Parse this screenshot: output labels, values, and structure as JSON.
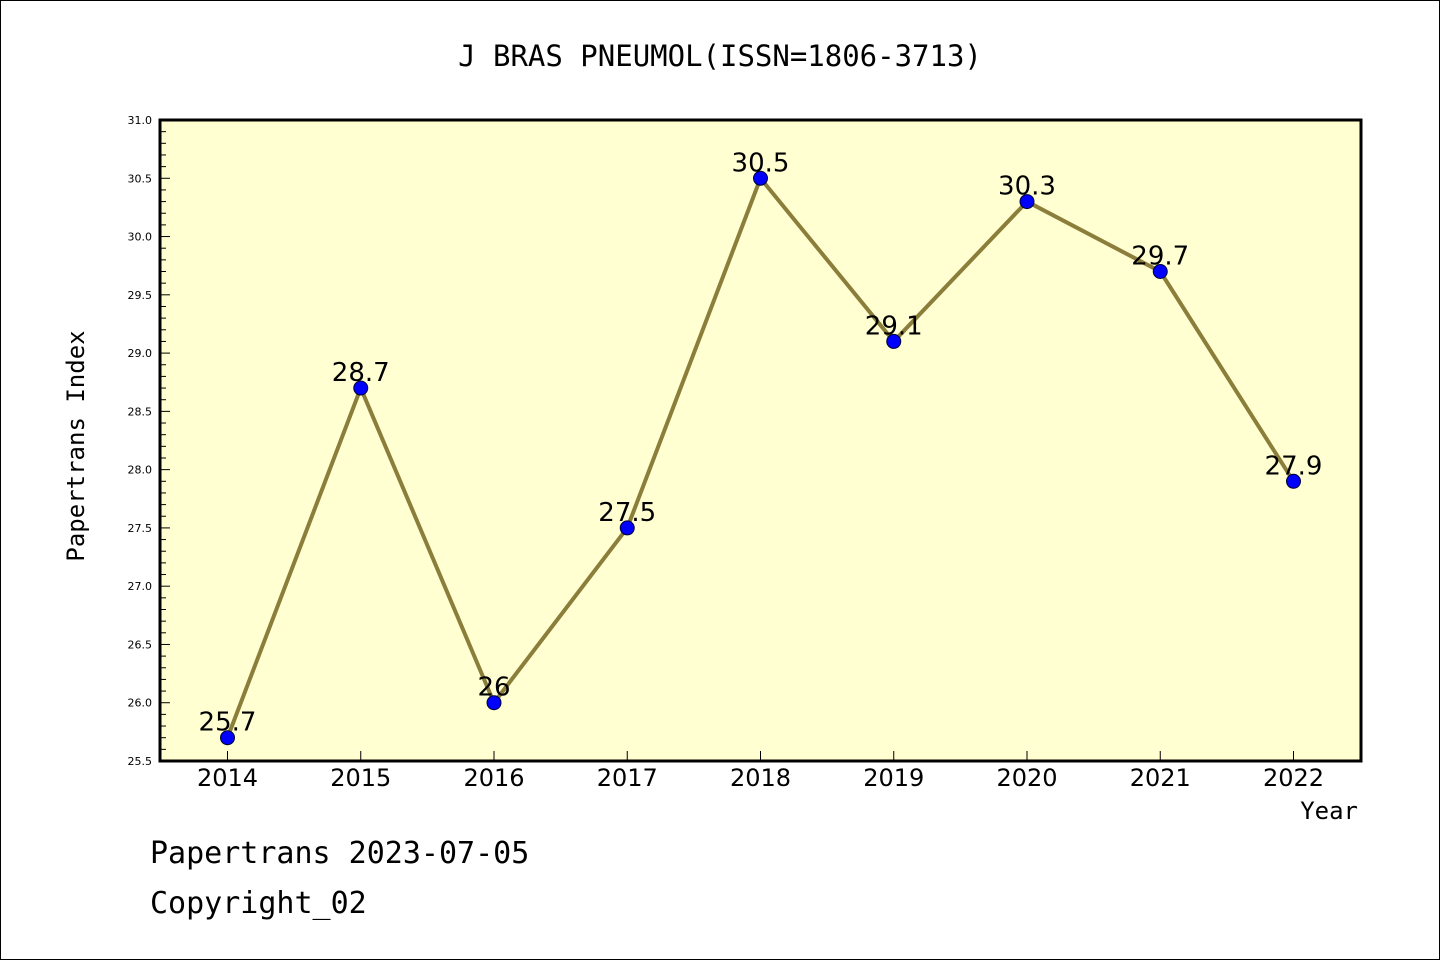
{
  "chart_data": {
    "type": "line",
    "title": "J BRAS PNEUMOL(ISSN=1806-3713)",
    "xlabel": "Year",
    "ylabel": "Papertrans Index",
    "categories": [
      "2014",
      "2015",
      "2016",
      "2017",
      "2018",
      "2019",
      "2020",
      "2021",
      "2022"
    ],
    "series": [
      {
        "values": [
          25.7,
          28.7,
          26,
          27.5,
          30.5,
          29.1,
          30.3,
          29.7,
          27.9
        ],
        "data_labels": [
          "25.7",
          "28.7",
          "26",
          "27.5",
          "30.5",
          "29.1",
          "30.3",
          "29.7",
          "27.9"
        ]
      }
    ],
    "ylim": [
      25.5,
      31.0
    ],
    "yticks": [
      "25.5",
      "26.0",
      "26.5",
      "27.0",
      "27.5",
      "28.0",
      "28.5",
      "29.0",
      "29.5",
      "30.0",
      "30.5",
      "31.0"
    ],
    "grid": false,
    "colors": {
      "plot_background": "#ffffd2",
      "line": "#8b7d3a",
      "marker": "#0000ff",
      "axis": "#000000"
    }
  },
  "footer": {
    "date_text": "Papertrans 2023-07-05",
    "copyright_text": "Copyright_02"
  }
}
